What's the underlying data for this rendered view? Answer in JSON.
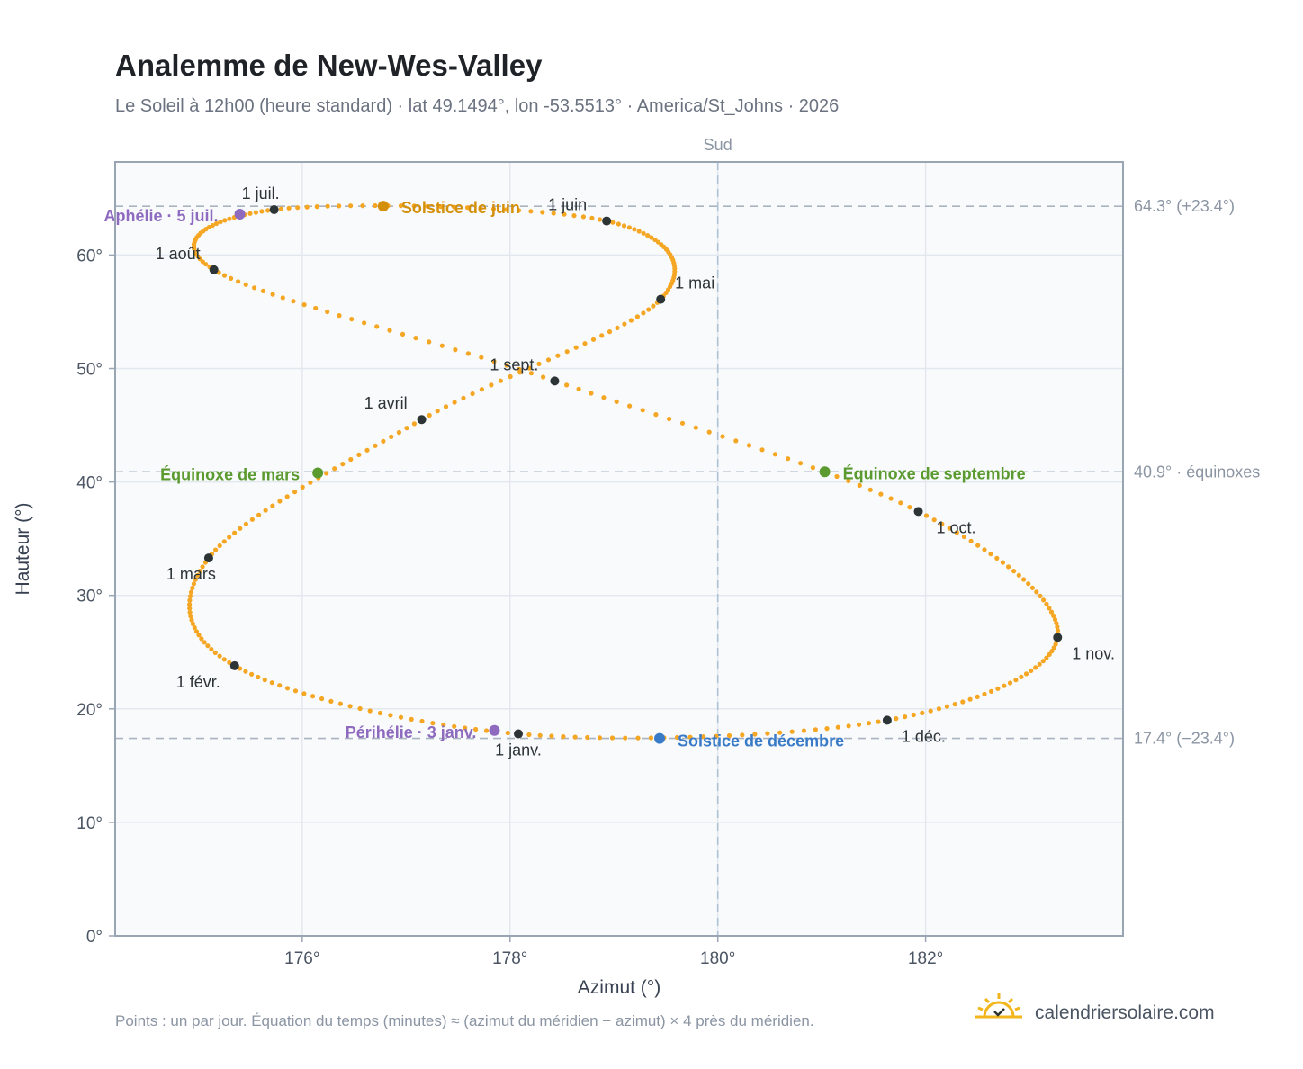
{
  "chart_data": {
    "type": "scatter",
    "title": "Analemme de New-Wes-Valley",
    "subtitle": "Le Soleil à 12h00 (heure standard) · lat 49.1494°, lon -53.5513° · America/St_Johns · 2026",
    "xlabel": "Azimut (°)",
    "ylabel": "Hauteur (°)",
    "xlim": [
      174.2,
      183.9
    ],
    "ylim": [
      0,
      68.2
    ],
    "x_ticks": [
      176,
      178,
      180,
      182
    ],
    "x_tick_labels": [
      "176°",
      "178°",
      "180°",
      "182°"
    ],
    "y_ticks": [
      0,
      10,
      20,
      30,
      40,
      50,
      60
    ],
    "y_tick_labels": [
      "0°",
      "10°",
      "20°",
      "30°",
      "40°",
      "50°",
      "60°"
    ],
    "grid": true,
    "south_label": "Sud",
    "series": [
      {
        "description": "un point par jour",
        "color": "#f5a623",
        "anchors": [
          {
            "label": "1 janv.",
            "x": 178.08,
            "y": 17.8
          },
          {
            "label": "1 févr.",
            "x": 175.35,
            "y": 23.8
          },
          {
            "label": "1 mars",
            "x": 175.1,
            "y": 33.3
          },
          {
            "label": "1 avril",
            "x": 177.15,
            "y": 45.5
          },
          {
            "label": "1 mai",
            "x": 179.45,
            "y": 56.1
          },
          {
            "label": "1 juin",
            "x": 178.93,
            "y": 63.0
          },
          {
            "label": "1 juil.",
            "x": 175.73,
            "y": 64.0
          },
          {
            "label": "1 août",
            "x": 175.15,
            "y": 58.7
          },
          {
            "label": "1 sept.",
            "x": 178.43,
            "y": 48.9
          },
          {
            "label": "1 oct.",
            "x": 181.93,
            "y": 37.4
          },
          {
            "label": "1 nov.",
            "x": 183.27,
            "y": 26.3
          },
          {
            "label": "1 déc.",
            "x": 181.63,
            "y": 19.0
          }
        ]
      }
    ],
    "events": [
      {
        "label": "Solstice de juin",
        "x": 176.78,
        "y": 64.3,
        "color": "#d4900a"
      },
      {
        "label": "Aphélie · 5 juil.",
        "x": 175.4,
        "y": 63.6,
        "color": "#8e6bbf"
      },
      {
        "label": "Équinoxe de mars",
        "x": 176.15,
        "y": 40.8,
        "color": "#5a9a2e"
      },
      {
        "label": "Équinoxe de septembre",
        "x": 181.03,
        "y": 40.9,
        "color": "#5a9a2e"
      },
      {
        "label": "Périhélie · 3 janv.",
        "x": 177.85,
        "y": 18.1,
        "color": "#8e6bbf"
      },
      {
        "label": "Solstice de décembre",
        "x": 179.44,
        "y": 17.4,
        "color": "#3a7bc8"
      }
    ],
    "reference_lines": [
      {
        "y": 64.3,
        "label": "64.3° (+23.4°)"
      },
      {
        "y": 40.9,
        "label": "40.9° · équinoxes"
      },
      {
        "y": 17.4,
        "label": "17.4° (−23.4°)"
      }
    ],
    "meridian_x": 180
  },
  "footnote": "Points : un par jour. Équation du temps (minutes) ≈ (azimut du méridien − azimut) × 4 près du méridien.",
  "brand": {
    "name": "calendriersolaire.com",
    "icon": "sun-logo-icon"
  },
  "colors": {
    "plot_bg": "#f8fafc",
    "frame": "#9aa5b4",
    "grid": "#e3e8ee",
    "marker": "#2d3436",
    "path": "#f5a623"
  }
}
